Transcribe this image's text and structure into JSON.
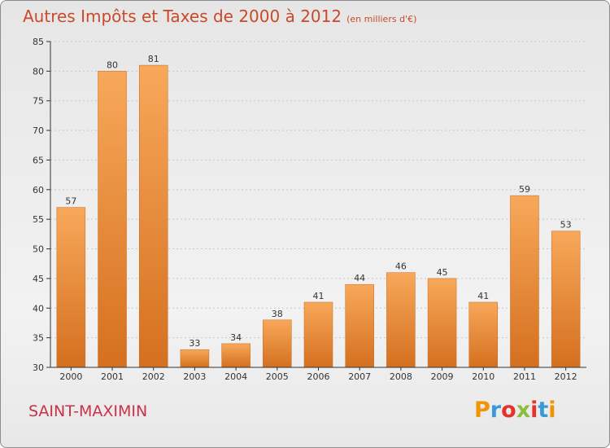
{
  "header": {
    "title": "Autres Impôts et Taxes de 2000 à 2012",
    "subtitle": "(en milliers d'€)"
  },
  "footer": {
    "commune": "SAINT-MAXIMIN",
    "logo": "Proxiti",
    "logo_colors": [
      "#f29400",
      "#3a9ad9",
      "#e6332a",
      "#8bbf3b",
      "#e6332a",
      "#3a9ad9",
      "#f29400"
    ]
  },
  "colors": {
    "bar_light": "#f8a85a",
    "bar_dark": "#d4701f",
    "axis": "#333333",
    "grid": "#c8c8c8"
  },
  "chart_data": {
    "type": "bar",
    "title": "Autres Impôts et Taxes de 2000 à 2012",
    "xlabel": "",
    "ylabel": "",
    "categories": [
      "2000",
      "2001",
      "2002",
      "2003",
      "2004",
      "2005",
      "2006",
      "2007",
      "2008",
      "2009",
      "2010",
      "2011",
      "2012"
    ],
    "values": [
      57,
      80,
      81,
      33,
      34,
      38,
      41,
      44,
      46,
      45,
      41,
      59,
      53
    ],
    "ylim": [
      30,
      85
    ],
    "yticks": [
      30,
      35,
      40,
      45,
      50,
      55,
      60,
      65,
      70,
      75,
      80,
      85
    ],
    "grid": true,
    "data_labels": true
  }
}
